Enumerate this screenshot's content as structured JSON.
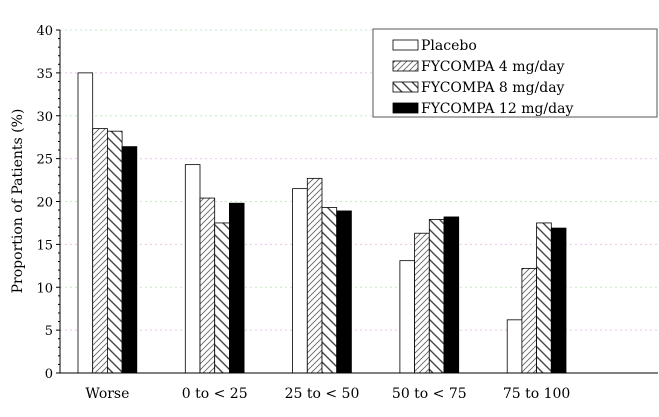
{
  "chart_data": {
    "type": "bar",
    "title": "",
    "xlabel": "",
    "ylabel": "Proportion of Patients (%)",
    "ylim": [
      0,
      40
    ],
    "yticks": [
      0,
      5,
      10,
      15,
      20,
      25,
      30,
      35,
      40
    ],
    "grid": true,
    "legend_placement": "top-right",
    "categories": [
      "Worse",
      "0  to  < 25",
      "25  to  < 50",
      "50  to  < 75",
      "75  to  100"
    ],
    "series": [
      {
        "name": "Placebo",
        "pattern": "empty",
        "values": [
          35.0,
          24.3,
          21.5,
          13.1,
          6.2
        ]
      },
      {
        "name": "FYCOMPA  4  mg/day",
        "pattern": "forward-hatch",
        "values": [
          28.5,
          20.4,
          22.7,
          16.3,
          12.2
        ]
      },
      {
        "name": "FYCOMPA  8  mg/day",
        "pattern": "back-hatch",
        "values": [
          28.2,
          17.5,
          19.3,
          17.9,
          17.5
        ]
      },
      {
        "name": "FYCOMPA  12  mg/day",
        "pattern": "solid",
        "values": [
          26.4,
          19.8,
          18.9,
          18.2,
          16.9
        ]
      }
    ]
  }
}
